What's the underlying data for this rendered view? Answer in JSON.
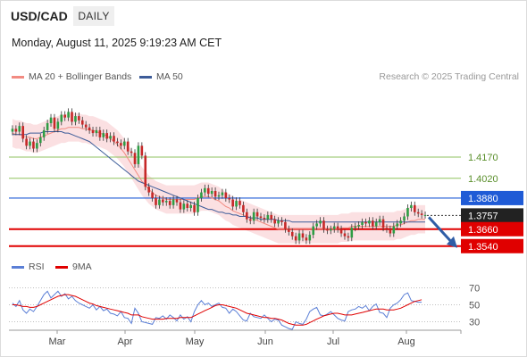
{
  "header": {
    "symbol": "USD/CAD",
    "timeframe": "DAILY",
    "datetime": "Monday, August 11, 2025 9:19:23 AM CET"
  },
  "legend": {
    "ma20": {
      "label": "MA 20 + Bollinger Bands",
      "color": "#f28b82"
    },
    "ma50": {
      "label": "MA 50",
      "color": "#3d5c99"
    },
    "credit": "Research © 2025 Trading Central"
  },
  "rsi_legend": {
    "rsi": {
      "label": "RSI",
      "color": "#5b7fd6"
    },
    "ma9": {
      "label": "9MA",
      "color": "#e00000"
    }
  },
  "chart_data": {
    "type": "candlestick",
    "x_labels": [
      "Mar",
      "Apr",
      "May",
      "Jun",
      "Jul",
      "Aug"
    ],
    "y_range": [
      1.345,
      1.465
    ],
    "levels": [
      {
        "value": 1.417,
        "label": "1.4170",
        "kind": "resistance",
        "color": "#8fc25f"
      },
      {
        "value": 1.402,
        "label": "1.4020",
        "kind": "resistance",
        "color": "#8fc25f"
      },
      {
        "value": 1.388,
        "label": "1.3880",
        "kind": "pivot",
        "color": "#1f5bd6"
      },
      {
        "value": 1.3757,
        "label": "1.3757",
        "kind": "last",
        "color": "#222222"
      },
      {
        "value": 1.366,
        "label": "1.3660",
        "kind": "support",
        "color": "#e00000"
      },
      {
        "value": 1.354,
        "label": "1.3540",
        "kind": "support",
        "color": "#e00000"
      }
    ],
    "closes": [
      1.437,
      1.435,
      1.439,
      1.43,
      1.425,
      1.428,
      1.423,
      1.427,
      1.431,
      1.436,
      1.441,
      1.445,
      1.437,
      1.442,
      1.447,
      1.445,
      1.449,
      1.442,
      1.446,
      1.443,
      1.44,
      1.438,
      1.436,
      1.434,
      1.436,
      1.431,
      1.434,
      1.43,
      1.432,
      1.428,
      1.427,
      1.425,
      1.428,
      1.421,
      1.42,
      1.412,
      1.425,
      1.418,
      1.396,
      1.392,
      1.388,
      1.383,
      1.387,
      1.385,
      1.386,
      1.383,
      1.387,
      1.385,
      1.38,
      1.384,
      1.381,
      1.383,
      1.378,
      1.388,
      1.392,
      1.395,
      1.391,
      1.393,
      1.389,
      1.39,
      1.392,
      1.388,
      1.387,
      1.382,
      1.386,
      1.383,
      1.378,
      1.373,
      1.372,
      1.378,
      1.375,
      1.374,
      1.373,
      1.376,
      1.373,
      1.37,
      1.372,
      1.371,
      1.366,
      1.364,
      1.361,
      1.358,
      1.363,
      1.36,
      1.358,
      1.362,
      1.368,
      1.37,
      1.372,
      1.366,
      1.365,
      1.366,
      1.368,
      1.366,
      1.363,
      1.361,
      1.36,
      1.367,
      1.368,
      1.369,
      1.371,
      1.37,
      1.372,
      1.368,
      1.371,
      1.373,
      1.367,
      1.366,
      1.363,
      1.368,
      1.37,
      1.372,
      1.375,
      1.381,
      1.383,
      1.378,
      1.377,
      1.376,
      1.376
    ],
    "ma20": [
      1.434,
      1.433,
      1.433,
      1.432,
      1.431,
      1.431,
      1.43,
      1.43,
      1.431,
      1.432,
      1.433,
      1.434,
      1.435,
      1.436,
      1.437,
      1.437,
      1.438,
      1.438,
      1.438,
      1.438,
      1.437,
      1.437,
      1.436,
      1.436,
      1.435,
      1.434,
      1.433,
      1.432,
      1.43,
      1.428,
      1.426,
      1.423,
      1.42,
      1.416,
      1.412,
      1.408,
      1.404,
      1.4,
      1.397,
      1.394,
      1.392,
      1.39,
      1.389,
      1.388,
      1.387,
      1.387,
      1.387,
      1.387,
      1.387,
      1.387,
      1.387,
      1.387,
      1.387,
      1.388,
      1.389,
      1.389,
      1.389,
      1.388,
      1.387,
      1.386,
      1.384,
      1.382,
      1.381,
      1.379,
      1.378,
      1.377,
      1.376,
      1.375,
      1.374,
      1.373,
      1.372,
      1.371,
      1.37,
      1.369,
      1.368,
      1.367,
      1.366,
      1.366,
      1.366,
      1.366,
      1.366,
      1.366,
      1.366,
      1.366,
      1.366,
      1.366,
      1.366,
      1.366,
      1.366,
      1.366,
      1.366,
      1.366,
      1.366,
      1.366,
      1.367,
      1.367,
      1.367,
      1.368,
      1.368,
      1.368,
      1.368,
      1.368,
      1.368,
      1.368,
      1.368,
      1.368,
      1.368,
      1.368,
      1.368,
      1.368,
      1.369,
      1.369,
      1.37,
      1.371,
      1.372,
      1.372,
      1.373,
      1.373,
      1.373
    ],
    "ma50": [
      1.433,
      1.433,
      1.433,
      1.433,
      1.433,
      1.434,
      1.434,
      1.434,
      1.434,
      1.435,
      1.435,
      1.435,
      1.435,
      1.435,
      1.435,
      1.434,
      1.434,
      1.433,
      1.432,
      1.431,
      1.43,
      1.429,
      1.428,
      1.426,
      1.424,
      1.422,
      1.42,
      1.418,
      1.416,
      1.414,
      1.412,
      1.41,
      1.408,
      1.406,
      1.404,
      1.402,
      1.4,
      1.399,
      1.398,
      1.397,
      1.396,
      1.395,
      1.394,
      1.393,
      1.392,
      1.391,
      1.39,
      1.389,
      1.388,
      1.387,
      1.386,
      1.385,
      1.384,
      1.383,
      1.382,
      1.381,
      1.38,
      1.38,
      1.379,
      1.378,
      1.378,
      1.377,
      1.377,
      1.376,
      1.376,
      1.375,
      1.375,
      1.375,
      1.374,
      1.374,
      1.374,
      1.373,
      1.373,
      1.373,
      1.373,
      1.373,
      1.372,
      1.372,
      1.372,
      1.372,
      1.371,
      1.371,
      1.371,
      1.371,
      1.371,
      1.371,
      1.371,
      1.371,
      1.371,
      1.371,
      1.371,
      1.371,
      1.371,
      1.371,
      1.371,
      1.371,
      1.371,
      1.371,
      1.371,
      1.371,
      1.371,
      1.371,
      1.371,
      1.371,
      1.371,
      1.371,
      1.371,
      1.371,
      1.371,
      1.371,
      1.371,
      1.371,
      1.371,
      1.371,
      1.371,
      1.371,
      1.371,
      1.371,
      1.371
    ],
    "band_width": 0.01,
    "rsi": {
      "levels": [
        70,
        50,
        30
      ],
      "y_range": [
        20,
        80
      ],
      "values": [
        52,
        48,
        55,
        44,
        40,
        45,
        42,
        48,
        55,
        62,
        66,
        58,
        62,
        66,
        60,
        63,
        57,
        60,
        55,
        52,
        50,
        48,
        46,
        50,
        44,
        48,
        43,
        45,
        40,
        39,
        37,
        42,
        35,
        34,
        28,
        46,
        40,
        30,
        29,
        28,
        27,
        35,
        34,
        37,
        33,
        38,
        35,
        31,
        38,
        33,
        36,
        30,
        42,
        50,
        55,
        50,
        52,
        48,
        50,
        52,
        47,
        46,
        40,
        45,
        42,
        37,
        32,
        31,
        40,
        36,
        35,
        34,
        38,
        34,
        30,
        33,
        32,
        26,
        24,
        22,
        21,
        30,
        28,
        27,
        33,
        42,
        45,
        47,
        38,
        37,
        39,
        42,
        38,
        34,
        32,
        31,
        42,
        44,
        45,
        48,
        46,
        49,
        43,
        48,
        51,
        41,
        40,
        35,
        46,
        50,
        52,
        56,
        62,
        64,
        55,
        54,
        53,
        53
      ],
      "ma9": [
        50,
        50,
        49,
        48,
        48,
        47,
        47,
        48,
        50,
        52,
        54,
        56,
        58,
        60,
        61,
        62,
        62,
        61,
        60,
        58,
        56,
        54,
        52,
        51,
        49,
        48,
        47,
        46,
        45,
        44,
        43,
        42,
        41,
        40,
        38,
        38,
        38,
        36,
        35,
        34,
        33,
        33,
        33,
        33,
        34,
        34,
        34,
        34,
        35,
        35,
        35,
        35,
        37,
        39,
        41,
        43,
        45,
        47,
        49,
        50,
        50,
        49,
        48,
        47,
        46,
        44,
        42,
        40,
        39,
        38,
        37,
        36,
        35,
        35,
        34,
        34,
        33,
        32,
        30,
        28,
        27,
        26,
        26,
        26,
        27,
        29,
        31,
        33,
        35,
        37,
        38,
        39,
        40,
        40,
        39,
        38,
        38,
        38,
        39,
        40,
        41,
        42,
        43,
        44,
        45,
        45,
        45,
        44,
        44,
        44,
        45,
        46,
        48,
        50,
        52,
        54,
        55,
        56
      ]
    }
  }
}
